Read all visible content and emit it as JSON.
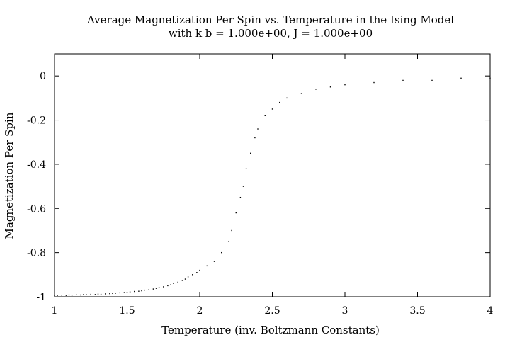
{
  "chart_data": {
    "type": "scatter",
    "title": "Average Magnetization Per Spin vs. Temperature in the Ising Model",
    "subtitle": "with k b = 1.000e+00, J = 1.000e+00",
    "xlabel": "Temperature (inv. Boltzmann Constants)",
    "ylabel": "Magnetization Per Spin",
    "xlim": [
      1,
      4
    ],
    "ylim": [
      -1,
      0.1
    ],
    "x_ticks": [
      1,
      1.5,
      2,
      2.5,
      3,
      3.5,
      4
    ],
    "x_tick_labels": [
      "1",
      "1.5",
      "2",
      "2.5",
      "3",
      "3.5",
      "4"
    ],
    "y_ticks": [
      -1,
      -0.8,
      -0.6,
      -0.4,
      -0.2,
      0
    ],
    "y_tick_labels": [
      "-1",
      "-0.8",
      "-0.6",
      "-0.4",
      "-0.2",
      "0"
    ],
    "grid": false,
    "legend": "none",
    "marker_color": "#000000",
    "series": [
      {
        "points": [
          [
            1.0,
            -0.995
          ],
          [
            1.02,
            -0.994
          ],
          [
            1.05,
            -0.993
          ],
          [
            1.08,
            -0.994
          ],
          [
            1.1,
            -0.992
          ],
          [
            1.12,
            -0.993
          ],
          [
            1.15,
            -0.991
          ],
          [
            1.18,
            -0.992
          ],
          [
            1.2,
            -0.99
          ],
          [
            1.22,
            -0.991
          ],
          [
            1.25,
            -0.989
          ],
          [
            1.28,
            -0.99
          ],
          [
            1.3,
            -0.988
          ],
          [
            1.32,
            -0.989
          ],
          [
            1.35,
            -0.987
          ],
          [
            1.38,
            -0.986
          ],
          [
            1.4,
            -0.985
          ],
          [
            1.42,
            -0.984
          ],
          [
            1.45,
            -0.982
          ],
          [
            1.48,
            -0.981
          ],
          [
            1.5,
            -0.98
          ],
          [
            1.52,
            -0.978
          ],
          [
            1.55,
            -0.976
          ],
          [
            1.58,
            -0.975
          ],
          [
            1.6,
            -0.973
          ],
          [
            1.62,
            -0.97
          ],
          [
            1.65,
            -0.968
          ],
          [
            1.68,
            -0.965
          ],
          [
            1.7,
            -0.962
          ],
          [
            1.72,
            -0.958
          ],
          [
            1.75,
            -0.955
          ],
          [
            1.78,
            -0.95
          ],
          [
            1.8,
            -0.946
          ],
          [
            1.82,
            -0.94
          ],
          [
            1.85,
            -0.934
          ],
          [
            1.88,
            -0.926
          ],
          [
            1.9,
            -0.92
          ],
          [
            1.92,
            -0.91
          ],
          [
            1.95,
            -0.9
          ],
          [
            1.98,
            -0.89
          ],
          [
            2.0,
            -0.88
          ],
          [
            2.05,
            -0.86
          ],
          [
            2.1,
            -0.84
          ],
          [
            2.15,
            -0.8
          ],
          [
            2.2,
            -0.75
          ],
          [
            2.22,
            -0.7
          ],
          [
            2.25,
            -0.62
          ],
          [
            2.28,
            -0.55
          ],
          [
            2.3,
            -0.5
          ],
          [
            2.32,
            -0.42
          ],
          [
            2.35,
            -0.35
          ],
          [
            2.38,
            -0.28
          ],
          [
            2.4,
            -0.24
          ],
          [
            2.45,
            -0.18
          ],
          [
            2.5,
            -0.15
          ],
          [
            2.55,
            -0.12
          ],
          [
            2.6,
            -0.1
          ],
          [
            2.7,
            -0.08
          ],
          [
            2.8,
            -0.06
          ],
          [
            2.9,
            -0.05
          ],
          [
            3.0,
            -0.04
          ],
          [
            3.2,
            -0.03
          ],
          [
            3.4,
            -0.02
          ],
          [
            3.6,
            -0.02
          ],
          [
            3.8,
            -0.01
          ],
          [
            4.0,
            -0.01
          ]
        ]
      }
    ]
  }
}
